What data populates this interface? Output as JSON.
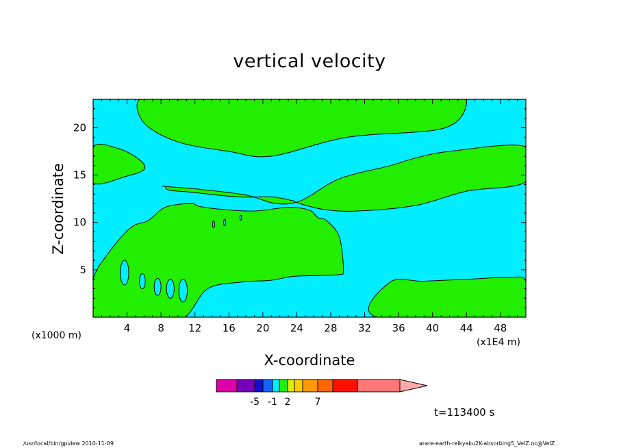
{
  "chart_data": {
    "type": "heatmap",
    "title": "vertical velocity",
    "xlabel": "X-coordinate",
    "ylabel": "Z-coordinate",
    "x_unit_label": "(x1000 m)",
    "x_scale_label": "(x1E4 m)",
    "xlim": [
      0,
      51
    ],
    "ylim": [
      0,
      23
    ],
    "x_ticks": [
      4,
      8,
      12,
      16,
      20,
      24,
      28,
      32,
      36,
      40,
      44,
      48
    ],
    "y_ticks": [
      5,
      10,
      15,
      20
    ],
    "colors": {
      "positive_region": "#22ee00",
      "negative_region": "#00eeff",
      "contour_line": "#000000"
    },
    "positive_regions": [
      {
        "x": [
          5.5,
          10.0,
          18.0,
          26.0,
          34.0,
          41.0,
          44.0,
          41.5,
          30.0,
          21.0,
          16.0,
          10.0,
          6.0
        ],
        "y": [
          23,
          23,
          23,
          23,
          23,
          23,
          23,
          20.0,
          19.0,
          17.0,
          17.5,
          18.5,
          20.5
        ]
      },
      {
        "x": [
          0,
          3.0,
          5.5,
          6.0,
          4.0,
          0
        ],
        "y": [
          18,
          17.8,
          16.6,
          15.6,
          14.9,
          14.2
        ]
      },
      {
        "x": [
          8.5,
          12.5,
          18,
          21.5,
          24.5,
          29,
          35,
          38,
          42,
          51,
          51,
          44,
          38,
          31,
          27,
          24,
          23.5,
          21,
          17,
          11.5,
          9,
          8.5
        ],
        "y": [
          13.8,
          13.5,
          12.9,
          12.0,
          12.3,
          14.6,
          16.0,
          16.8,
          17.5,
          18.0,
          14.3,
          13.3,
          11.8,
          11.2,
          11.4,
          12.1,
          12.3,
          12.7,
          12.7,
          13.2,
          13.4,
          13.8
        ]
      },
      {
        "x": [
          0,
          4.5,
          7.5,
          10.8,
          13.5,
          17.5,
          21,
          23.5,
          26.5,
          29,
          29.5,
          29.0,
          27.5,
          26.5,
          25.5,
          23,
          19,
          15,
          12.5,
          11.5,
          8.5,
          6.5,
          4.5,
          2.0,
          0
        ],
        "y": [
          0,
          0,
          0,
          0,
          3.0,
          3.7,
          3.9,
          4.3,
          4.4,
          4.5,
          5.0,
          8.5,
          10.2,
          10.5,
          11.3,
          11.6,
          11.2,
          11.4,
          11.7,
          12.0,
          11.6,
          10.2,
          9.5,
          7.0,
          4.0
        ]
      },
      {
        "x": [
          33.5,
          51,
          51,
          49,
          44,
          39,
          35
        ],
        "y": [
          0,
          0,
          3.8,
          4.2,
          4.0,
          3.8,
          3.7
        ]
      }
    ],
    "negative_cells": [
      {
        "x": 3.7,
        "y": 4.7,
        "rx": 0.5,
        "ry": 1.3
      },
      {
        "x": 5.8,
        "y": 3.8,
        "rx": 0.35,
        "ry": 0.8
      },
      {
        "x": 7.6,
        "y": 3.2,
        "rx": 0.4,
        "ry": 0.9
      },
      {
        "x": 9.1,
        "y": 3.0,
        "rx": 0.45,
        "ry": 1.0
      },
      {
        "x": 10.6,
        "y": 2.8,
        "rx": 0.5,
        "ry": 1.2
      },
      {
        "x": 14.2,
        "y": 9.8,
        "rx": 0.12,
        "ry": 0.35
      },
      {
        "x": 15.5,
        "y": 10.0,
        "rx": 0.12,
        "ry": 0.35
      },
      {
        "x": 17.4,
        "y": 10.5,
        "rx": 0.1,
        "ry": 0.25
      }
    ],
    "colorbar": {
      "colors": [
        "#dd00aa",
        "#7700bb",
        "#1111cc",
        "#1166ff",
        "#00eeff",
        "#22ee00",
        "#ddee00",
        "#ffcc00",
        "#ff9900",
        "#ff6600",
        "#ff1100",
        "#ff7777",
        "#ffaaaa"
      ],
      "labels": [
        "-5",
        "-1",
        "2",
        "7"
      ]
    }
  },
  "time_label": "t=113400 s",
  "footer_left": "/usr/local/bin/gpview  2010-11-09",
  "footer_right": "arare-earth-reikyaku2K-absorbing5_VelZ.nc@VelZ"
}
